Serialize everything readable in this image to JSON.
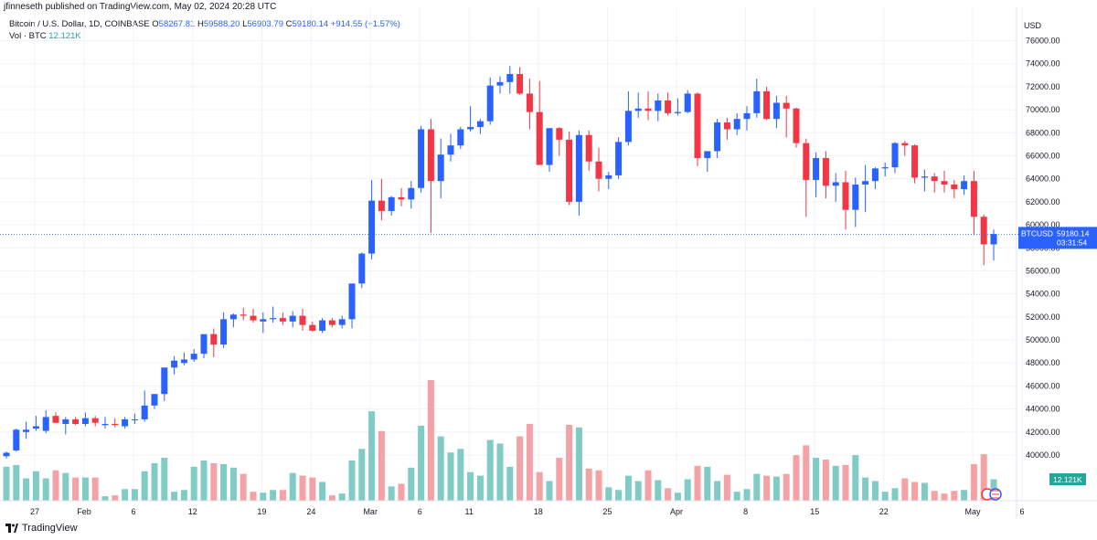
{
  "header": {
    "published": "jfinneseth published on TradingView.com, May 02, 2024 20:28 UTC",
    "symbol": "Bitcoin / U.S. Dollar, 1D, COINBASE",
    "open_label": "O",
    "open": "58267.81",
    "high_label": "H",
    "high": "59588.20",
    "low_label": "L",
    "low": "56903.79",
    "close_label": "C",
    "close": "59180.14",
    "change": "+914.55 (+1.57%)",
    "vol_label": "Vol · BTC",
    "vol_value": "12.121K"
  },
  "axis": {
    "currency": "USD",
    "price_tag_symbol": "BTCUSD",
    "price_tag_value": "59180.14",
    "price_tag_countdown": "03:31:54",
    "volume_tag": "12.121K",
    "price_ticks": [
      "76000.00",
      "74000.00",
      "72000.00",
      "70000.00",
      "68000.00",
      "66000.00",
      "64000.00",
      "62000.00",
      "60000.00",
      "58000.00",
      "56000.00",
      "54000.00",
      "52000.00",
      "50000.00",
      "48000.00",
      "46000.00",
      "44000.00",
      "42000.00",
      "40000.00"
    ],
    "date_ticks": [
      {
        "label": "27",
        "day": 0
      },
      {
        "label": "Feb",
        "day": 5
      },
      {
        "label": "6",
        "day": 10
      },
      {
        "label": "12",
        "day": 16
      },
      {
        "label": "19",
        "day": 23
      },
      {
        "label": "24",
        "day": 28
      },
      {
        "label": "Mar",
        "day": 34
      },
      {
        "label": "6",
        "day": 39
      },
      {
        "label": "11",
        "day": 44
      },
      {
        "label": "18",
        "day": 51
      },
      {
        "label": "25",
        "day": 58
      },
      {
        "label": "Apr",
        "day": 65
      },
      {
        "label": "8",
        "day": 72
      },
      {
        "label": "15",
        "day": 79
      },
      {
        "label": "22",
        "day": 86
      },
      {
        "label": "May",
        "day": 95
      },
      {
        "label": "6",
        "day": 100
      }
    ]
  },
  "footer": {
    "brand": "TradingView"
  },
  "colors": {
    "up": "#2962ff",
    "down": "#f23645",
    "vol_up": "#80cbc4",
    "vol_down": "#f5a2a6",
    "tag_blue": "#2962ff",
    "tag_green": "#26a69a"
  },
  "chart_data": {
    "type": "candlestick",
    "symbol": "Bitcoin / U.S. Dollar, 1D, COINBASE",
    "ylim": [
      39000,
      76800
    ],
    "first_day_label": "27",
    "candles": [
      {
        "o": 39900,
        "h": 40300,
        "l": 39700,
        "c": 40200,
        "v": 0.38
      },
      {
        "o": 40400,
        "h": 42300,
        "l": 40300,
        "c": 42200,
        "v": 0.4
      },
      {
        "o": 42000,
        "h": 42900,
        "l": 41400,
        "c": 42200,
        "v": 0.25
      },
      {
        "o": 42300,
        "h": 43400,
        "l": 42100,
        "c": 42500,
        "v": 0.33
      },
      {
        "o": 42100,
        "h": 43900,
        "l": 41900,
        "c": 43300,
        "v": 0.25
      },
      {
        "o": 43400,
        "h": 43700,
        "l": 42800,
        "c": 42800,
        "v": 0.34
      },
      {
        "o": 42700,
        "h": 43300,
        "l": 41800,
        "c": 43100,
        "v": 0.31
      },
      {
        "o": 43100,
        "h": 43300,
        "l": 42600,
        "c": 42700,
        "v": 0.26
      },
      {
        "o": 42700,
        "h": 43700,
        "l": 42500,
        "c": 43200,
        "v": 0.26
      },
      {
        "o": 43200,
        "h": 43400,
        "l": 42500,
        "c": 42800,
        "v": 0.26
      },
      {
        "o": 42600,
        "h": 43300,
        "l": 42300,
        "c": 42700,
        "v": 0.05
      },
      {
        "o": 42700,
        "h": 43200,
        "l": 42400,
        "c": 42600,
        "v": 0.06
      },
      {
        "o": 42500,
        "h": 43300,
        "l": 42300,
        "c": 43100,
        "v": 0.13
      },
      {
        "o": 43100,
        "h": 43600,
        "l": 42700,
        "c": 43100,
        "v": 0.13
      },
      {
        "o": 43100,
        "h": 45600,
        "l": 42900,
        "c": 44300,
        "v": 0.33
      },
      {
        "o": 44300,
        "h": 45200,
        "l": 44000,
        "c": 45300,
        "v": 0.42
      },
      {
        "o": 45300,
        "h": 47600,
        "l": 44700,
        "c": 47600,
        "v": 0.48
      },
      {
        "o": 47600,
        "h": 48600,
        "l": 47000,
        "c": 48200,
        "v": 0.1
      },
      {
        "o": 48000,
        "h": 48900,
        "l": 47800,
        "c": 48300,
        "v": 0.12
      },
      {
        "o": 48300,
        "h": 49200,
        "l": 48100,
        "c": 48800,
        "v": 0.38
      },
      {
        "o": 48800,
        "h": 50300,
        "l": 48400,
        "c": 50500,
        "v": 0.45
      },
      {
        "o": 50500,
        "h": 51000,
        "l": 48500,
        "c": 49600,
        "v": 0.42
      },
      {
        "o": 49600,
        "h": 52400,
        "l": 49300,
        "c": 51800,
        "v": 0.41
      },
      {
        "o": 51800,
        "h": 52300,
        "l": 51100,
        "c": 52200,
        "v": 0.37
      },
      {
        "o": 52200,
        "h": 52800,
        "l": 51700,
        "c": 52100,
        "v": 0.3
      },
      {
        "o": 52100,
        "h": 52700,
        "l": 51500,
        "c": 51700,
        "v": 0.1
      },
      {
        "o": 51600,
        "h": 52400,
        "l": 50600,
        "c": 51800,
        "v": 0.09
      },
      {
        "o": 51800,
        "h": 52900,
        "l": 51500,
        "c": 51900,
        "v": 0.12
      },
      {
        "o": 51900,
        "h": 52400,
        "l": 51300,
        "c": 51600,
        "v": 0.12
      },
      {
        "o": 51600,
        "h": 52500,
        "l": 51100,
        "c": 52100,
        "v": 0.31
      },
      {
        "o": 52100,
        "h": 52700,
        "l": 50800,
        "c": 51300,
        "v": 0.28
      },
      {
        "o": 51300,
        "h": 51600,
        "l": 50700,
        "c": 50800,
        "v": 0.26
      },
      {
        "o": 50800,
        "h": 51900,
        "l": 50600,
        "c": 51700,
        "v": 0.21
      },
      {
        "o": 51700,
        "h": 51900,
        "l": 51100,
        "c": 51300,
        "v": 0.06
      },
      {
        "o": 51300,
        "h": 52100,
        "l": 51000,
        "c": 51800,
        "v": 0.08
      },
      {
        "o": 51800,
        "h": 54800,
        "l": 51000,
        "c": 54900,
        "v": 0.45
      },
      {
        "o": 54900,
        "h": 57600,
        "l": 54500,
        "c": 57500,
        "v": 0.58
      },
      {
        "o": 57500,
        "h": 63900,
        "l": 57000,
        "c": 62100,
        "v": 1.0
      },
      {
        "o": 62100,
        "h": 64000,
        "l": 60400,
        "c": 61200,
        "v": 0.78
      },
      {
        "o": 61200,
        "h": 62500,
        "l": 60800,
        "c": 62400,
        "v": 0.16
      },
      {
        "o": 62400,
        "h": 63200,
        "l": 61600,
        "c": 62200,
        "v": 0.19
      },
      {
        "o": 62200,
        "h": 63800,
        "l": 61400,
        "c": 63200,
        "v": 0.37
      },
      {
        "o": 63200,
        "h": 68600,
        "l": 62800,
        "c": 68300,
        "v": 0.84
      },
      {
        "o": 68300,
        "h": 69200,
        "l": 59300,
        "c": 63800,
        "v": 1.35
      },
      {
        "o": 63800,
        "h": 67500,
        "l": 62300,
        "c": 66100,
        "v": 0.72
      },
      {
        "o": 66100,
        "h": 67900,
        "l": 65500,
        "c": 66900,
        "v": 0.54
      },
      {
        "o": 66900,
        "h": 68500,
        "l": 66600,
        "c": 68300,
        "v": 0.58
      },
      {
        "o": 68300,
        "h": 70300,
        "l": 68100,
        "c": 68500,
        "v": 0.32
      },
      {
        "o": 68500,
        "h": 69200,
        "l": 67900,
        "c": 69000,
        "v": 0.28
      },
      {
        "o": 69000,
        "h": 72800,
        "l": 68700,
        "c": 72100,
        "v": 0.68
      },
      {
        "o": 72100,
        "h": 72900,
        "l": 71400,
        "c": 72400,
        "v": 0.64
      },
      {
        "o": 72400,
        "h": 73800,
        "l": 71400,
        "c": 73100,
        "v": 0.38
      },
      {
        "o": 73100,
        "h": 73700,
        "l": 71300,
        "c": 71400,
        "v": 0.72
      },
      {
        "o": 71400,
        "h": 72700,
        "l": 68300,
        "c": 69800,
        "v": 0.86
      },
      {
        "o": 69800,
        "h": 72500,
        "l": 65500,
        "c": 65200,
        "v": 0.32
      },
      {
        "o": 65200,
        "h": 68300,
        "l": 64600,
        "c": 68400,
        "v": 0.22
      },
      {
        "o": 68400,
        "h": 68500,
        "l": 66000,
        "c": 67400,
        "v": 0.48
      },
      {
        "o": 67400,
        "h": 68100,
        "l": 61700,
        "c": 62000,
        "v": 0.85
      },
      {
        "o": 62000,
        "h": 68200,
        "l": 60800,
        "c": 67800,
        "v": 0.82
      },
      {
        "o": 67800,
        "h": 68200,
        "l": 64700,
        "c": 65500,
        "v": 0.36
      },
      {
        "o": 65500,
        "h": 66700,
        "l": 62900,
        "c": 64000,
        "v": 0.34
      },
      {
        "o": 64000,
        "h": 64600,
        "l": 63100,
        "c": 64300,
        "v": 0.15
      },
      {
        "o": 64300,
        "h": 67600,
        "l": 64000,
        "c": 67200,
        "v": 0.12
      },
      {
        "o": 67200,
        "h": 71600,
        "l": 66900,
        "c": 69900,
        "v": 0.28
      },
      {
        "o": 69900,
        "h": 71500,
        "l": 69300,
        "c": 70100,
        "v": 0.22
      },
      {
        "o": 70100,
        "h": 71600,
        "l": 69100,
        "c": 69900,
        "v": 0.34
      },
      {
        "o": 69900,
        "h": 71400,
        "l": 69000,
        "c": 70800,
        "v": 0.23
      },
      {
        "o": 70800,
        "h": 71500,
        "l": 69500,
        "c": 69700,
        "v": 0.14
      },
      {
        "o": 69700,
        "h": 71000,
        "l": 69500,
        "c": 69800,
        "v": 0.09
      },
      {
        "o": 69800,
        "h": 71700,
        "l": 69700,
        "c": 71400,
        "v": 0.24
      },
      {
        "o": 71400,
        "h": 71500,
        "l": 65100,
        "c": 65800,
        "v": 0.39
      },
      {
        "o": 65800,
        "h": 66300,
        "l": 64600,
        "c": 66400,
        "v": 0.38
      },
      {
        "o": 66400,
        "h": 69200,
        "l": 65800,
        "c": 68900,
        "v": 0.22
      },
      {
        "o": 68900,
        "h": 69300,
        "l": 67400,
        "c": 68300,
        "v": 0.29
      },
      {
        "o": 68300,
        "h": 69700,
        "l": 67800,
        "c": 69200,
        "v": 0.1
      },
      {
        "o": 69200,
        "h": 70300,
        "l": 68200,
        "c": 69700,
        "v": 0.13
      },
      {
        "o": 69700,
        "h": 72700,
        "l": 69300,
        "c": 71600,
        "v": 0.3
      },
      {
        "o": 71600,
        "h": 72000,
        "l": 69100,
        "c": 69200,
        "v": 0.28
      },
      {
        "o": 69200,
        "h": 71200,
        "l": 68400,
        "c": 70600,
        "v": 0.27
      },
      {
        "o": 70600,
        "h": 71200,
        "l": 67600,
        "c": 70100,
        "v": 0.3
      },
      {
        "o": 70100,
        "h": 70200,
        "l": 66700,
        "c": 67100,
        "v": 0.51
      },
      {
        "o": 67100,
        "h": 67500,
        "l": 60700,
        "c": 63900,
        "v": 0.62
      },
      {
        "o": 63900,
        "h": 66300,
        "l": 62400,
        "c": 65800,
        "v": 0.48
      },
      {
        "o": 65800,
        "h": 66400,
        "l": 62300,
        "c": 63400,
        "v": 0.46
      },
      {
        "o": 63400,
        "h": 64500,
        "l": 62000,
        "c": 63700,
        "v": 0.39
      },
      {
        "o": 63700,
        "h": 64700,
        "l": 59600,
        "c": 61300,
        "v": 0.4
      },
      {
        "o": 61300,
        "h": 64100,
        "l": 59800,
        "c": 63500,
        "v": 0.51
      },
      {
        "o": 63500,
        "h": 65200,
        "l": 61100,
        "c": 63800,
        "v": 0.26
      },
      {
        "o": 63800,
        "h": 65000,
        "l": 63100,
        "c": 64900,
        "v": 0.22
      },
      {
        "o": 64900,
        "h": 65400,
        "l": 64200,
        "c": 65000,
        "v": 0.1
      },
      {
        "o": 65000,
        "h": 67200,
        "l": 64500,
        "c": 67100,
        "v": 0.14
      },
      {
        "o": 67100,
        "h": 67300,
        "l": 66000,
        "c": 66900,
        "v": 0.25
      },
      {
        "o": 66900,
        "h": 67000,
        "l": 63600,
        "c": 64100,
        "v": 0.21
      },
      {
        "o": 64100,
        "h": 64800,
        "l": 62900,
        "c": 64200,
        "v": 0.2
      },
      {
        "o": 64200,
        "h": 64500,
        "l": 62800,
        "c": 63800,
        "v": 0.11
      },
      {
        "o": 63800,
        "h": 64700,
        "l": 62800,
        "c": 63500,
        "v": 0.08
      },
      {
        "o": 63500,
        "h": 63900,
        "l": 62300,
        "c": 63100,
        "v": 0.11
      },
      {
        "o": 63100,
        "h": 64300,
        "l": 62600,
        "c": 63800,
        "v": 0.12
      },
      {
        "o": 63800,
        "h": 64700,
        "l": 59100,
        "c": 60700,
        "v": 0.41
      },
      {
        "o": 60700,
        "h": 60900,
        "l": 56500,
        "c": 58300,
        "v": 0.52
      },
      {
        "o": 58300,
        "h": 59600,
        "l": 56900,
        "c": 59200,
        "v": 0.24
      }
    ]
  }
}
